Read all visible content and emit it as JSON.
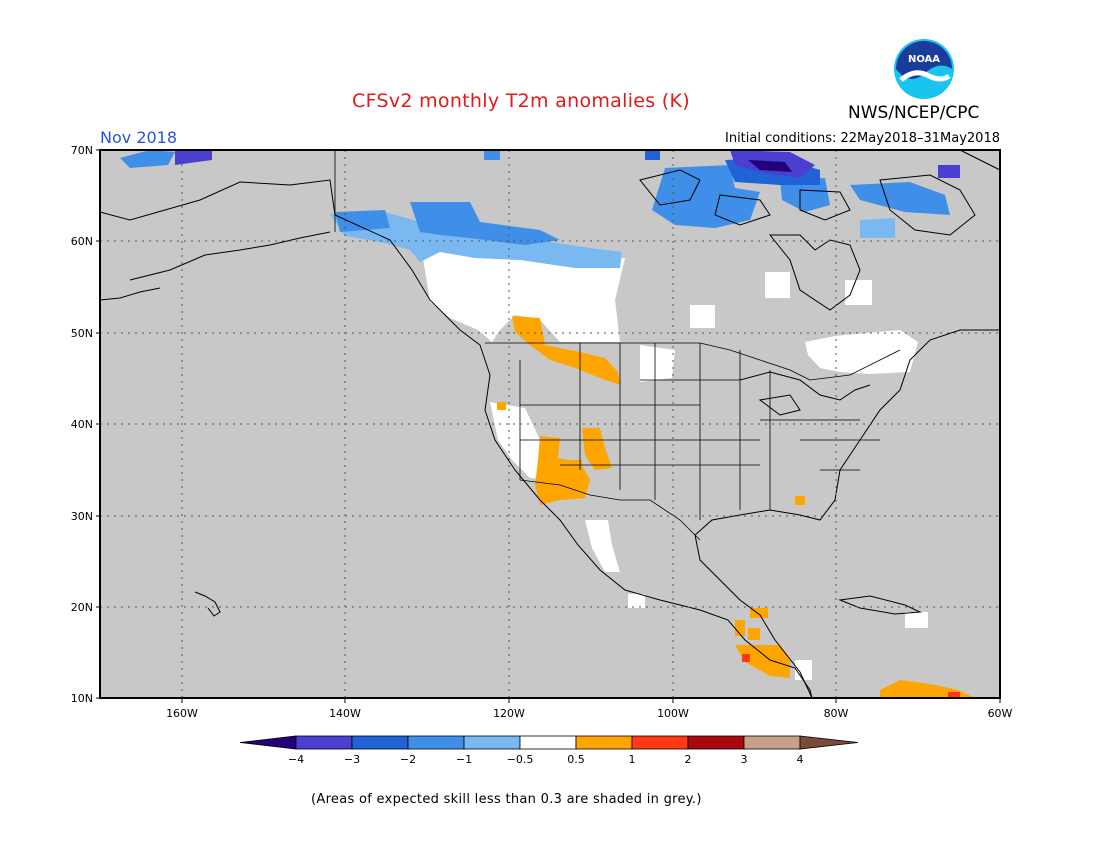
{
  "header": {
    "title": "CFSv2 monthly T2m anomalies (K)",
    "month": "Nov 2018",
    "initial_conditions": "Initial conditions: 22May2018–31May2018",
    "agency": "NWS/NCEP/CPC",
    "logo_text": "NOAA"
  },
  "map": {
    "lon_range": [
      -170,
      -60
    ],
    "lat_range": [
      10,
      70
    ],
    "lat_ticks": [
      "70N",
      "60N",
      "50N",
      "40N",
      "30N",
      "20N",
      "10N"
    ],
    "lon_ticks": [
      "160W",
      "140W",
      "120W",
      "100W",
      "80W",
      "60W"
    ],
    "background_color": "#c8c8c8",
    "land_outline_color": "#000000",
    "grid": "dotted"
  },
  "colorbar": {
    "labels": [
      "−4",
      "−3",
      "−2",
      "−1",
      "−0.5",
      "0.5",
      "1",
      "2",
      "3",
      "4"
    ],
    "colors": [
      "#21007a",
      "#4a3fd0",
      "#1f63d6",
      "#3f8fe8",
      "#7ab8f2",
      "#ffffff",
      "#ffa500",
      "#ff3a14",
      "#a8090d",
      "#c8a08a",
      "#7a4a3a"
    ]
  },
  "footnote": "(Areas of expected skill less than 0.3 are shaded in grey.)"
}
